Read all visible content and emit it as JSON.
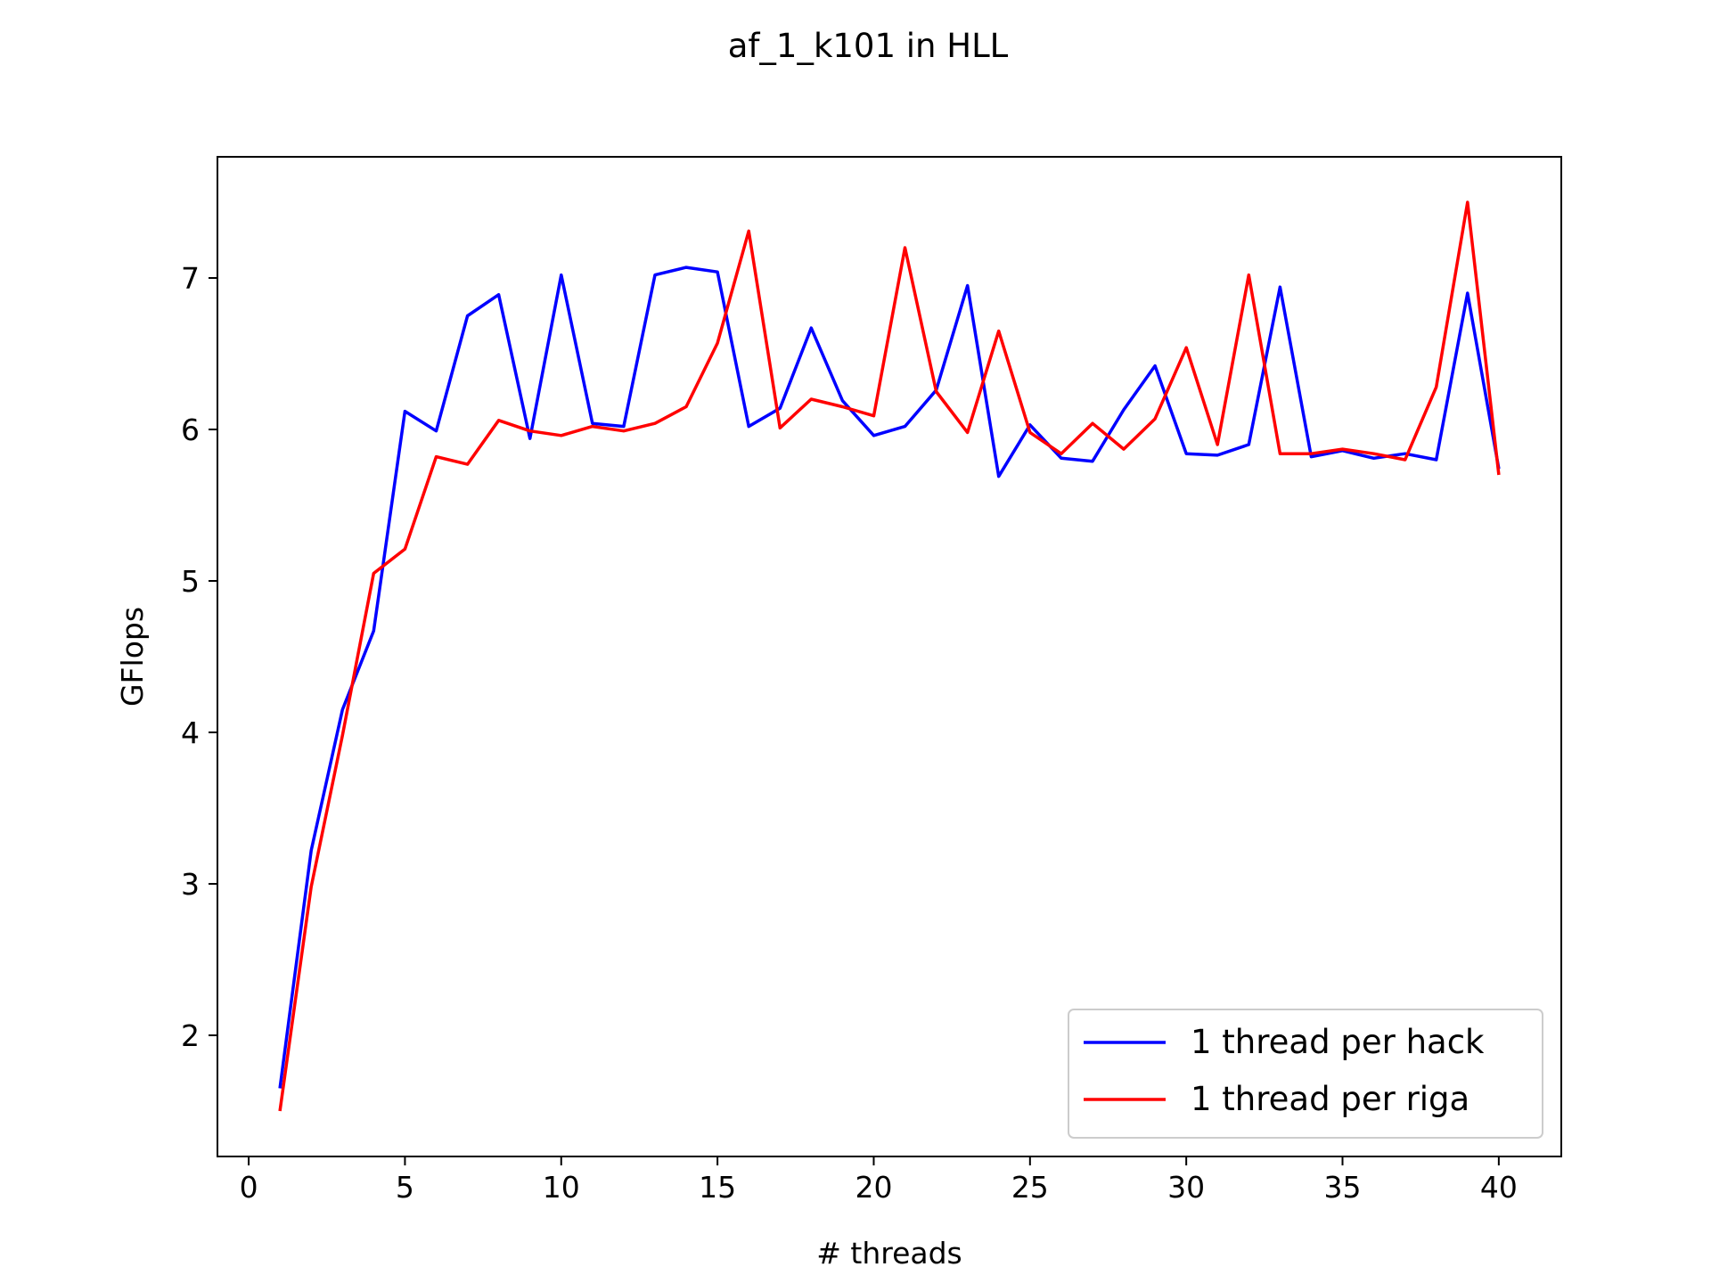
{
  "chart_data": {
    "type": "line",
    "title": "af_1_k101 in HLL",
    "xlabel": "# threads",
    "ylabel": "GFlops",
    "xlim": [
      -1,
      42
    ],
    "ylim": [
      1.2,
      7.8
    ],
    "xticks": [
      0,
      5,
      10,
      15,
      20,
      25,
      30,
      35,
      40
    ],
    "yticks": [
      2,
      3,
      4,
      5,
      6,
      7
    ],
    "grid": false,
    "legend_position": "lower-right",
    "x": [
      1,
      2,
      3,
      4,
      5,
      6,
      7,
      8,
      9,
      10,
      11,
      12,
      13,
      14,
      15,
      16,
      17,
      18,
      19,
      20,
      21,
      22,
      23,
      24,
      25,
      26,
      27,
      28,
      29,
      30,
      31,
      32,
      33,
      34,
      35,
      36,
      37,
      38,
      39,
      40
    ],
    "series": [
      {
        "name": "1 thread per hack",
        "color": "#0000ff",
        "values": [
          1.65,
          3.22,
          4.15,
          4.67,
          6.12,
          5.99,
          6.75,
          6.89,
          5.94,
          7.02,
          6.04,
          6.02,
          7.02,
          7.07,
          7.04,
          6.02,
          6.14,
          6.67,
          6.19,
          5.96,
          6.02,
          6.26,
          6.95,
          5.69,
          6.03,
          5.81,
          5.79,
          6.13,
          6.42,
          5.84,
          5.83,
          5.9,
          6.94,
          5.82,
          5.86,
          5.81,
          5.84,
          5.8,
          6.9,
          5.74
        ]
      },
      {
        "name": "1 thread per riga",
        "color": "#ff0000",
        "values": [
          1.5,
          2.98,
          3.98,
          5.05,
          5.21,
          5.82,
          5.77,
          6.06,
          5.99,
          5.96,
          6.02,
          5.99,
          6.04,
          6.15,
          6.57,
          7.31,
          6.01,
          6.2,
          6.15,
          6.09,
          7.2,
          6.25,
          5.98,
          6.65,
          5.98,
          5.84,
          6.04,
          5.87,
          6.07,
          6.54,
          5.9,
          7.02,
          5.84,
          5.84,
          5.87,
          5.84,
          5.8,
          6.28,
          7.5,
          5.7
        ]
      }
    ]
  }
}
